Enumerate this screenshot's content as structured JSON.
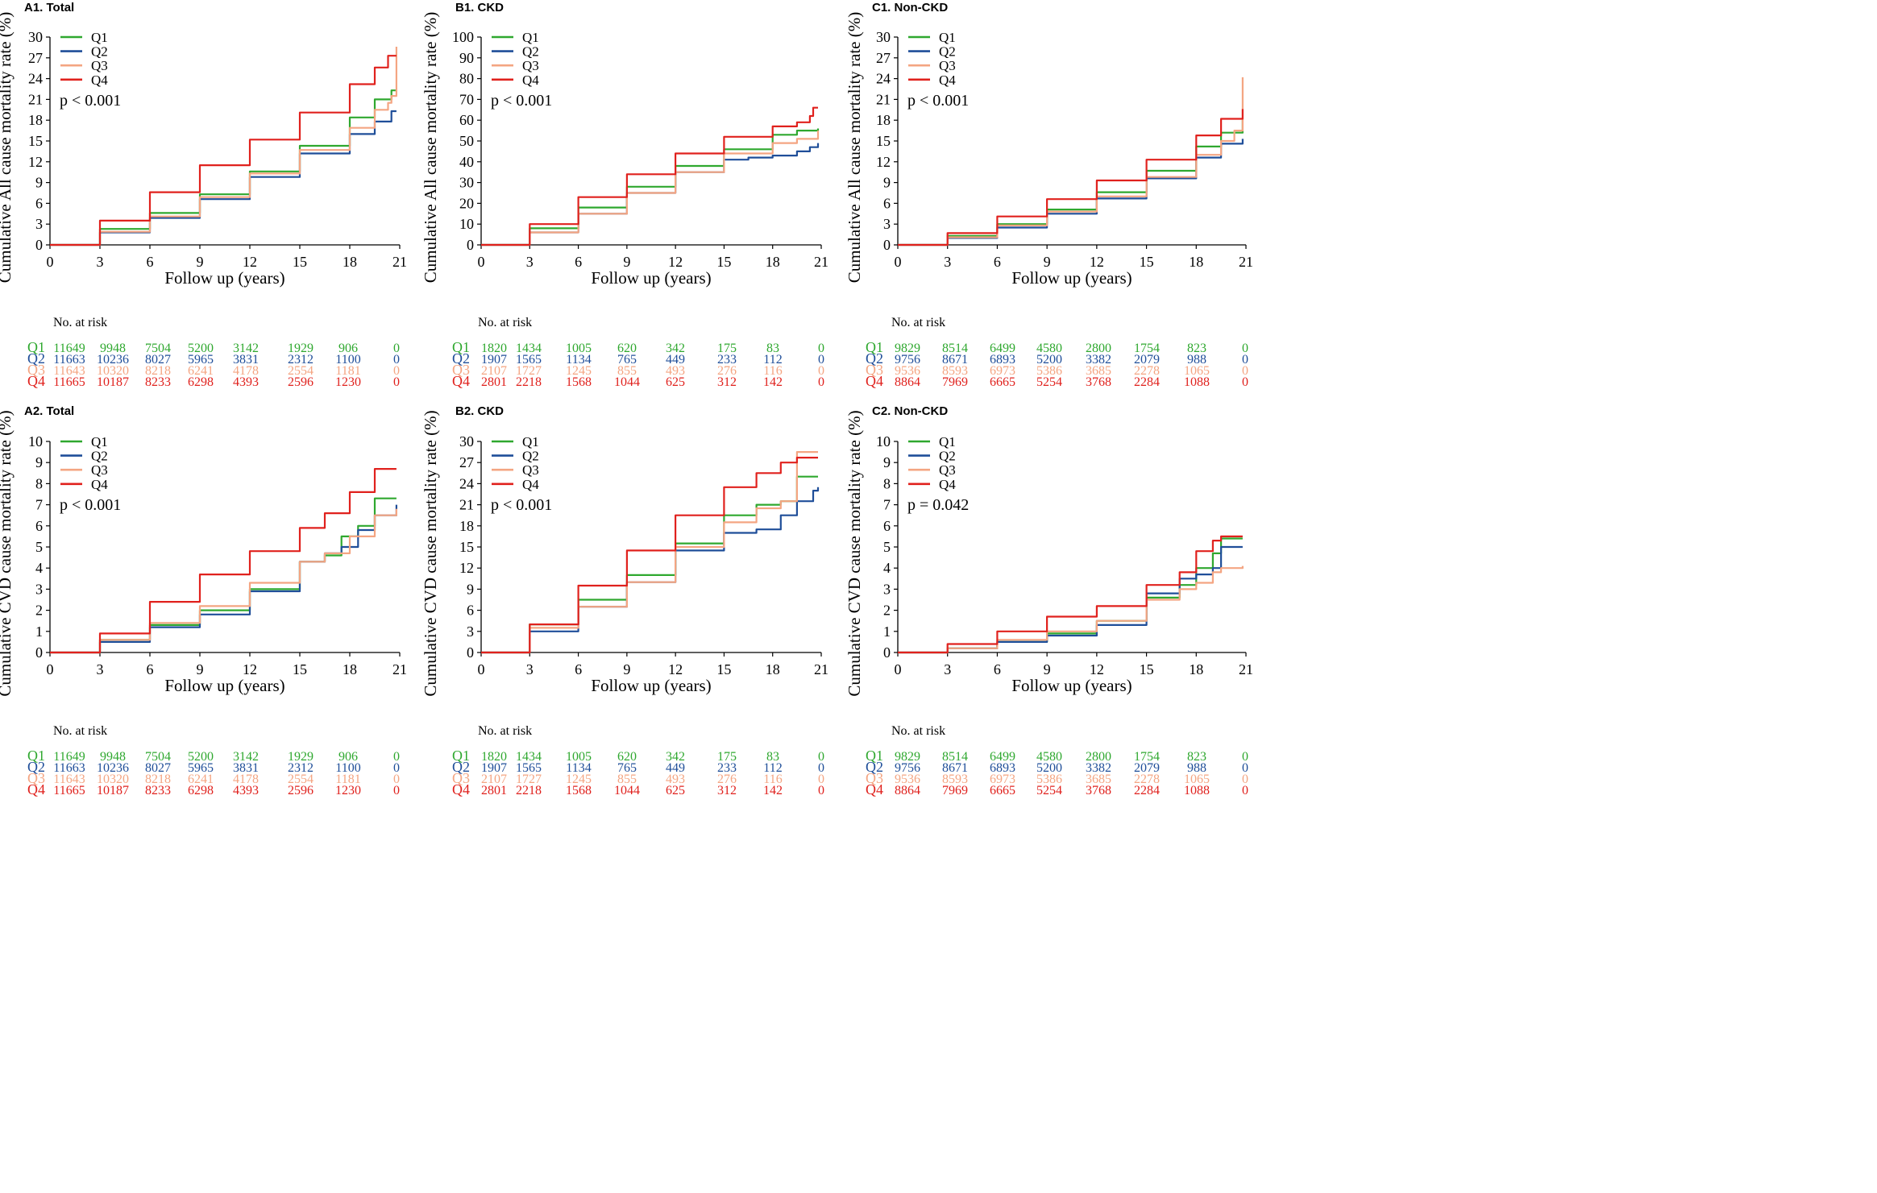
{
  "colors": {
    "Q1": "#2fa82f",
    "Q2": "#1f4e99",
    "Q3": "#f4a582",
    "Q4": "#e0211d",
    "axis": "#000000"
  },
  "legend_labels": [
    "Q1",
    "Q2",
    "Q3",
    "Q4"
  ],
  "risk_title": "No. at risk",
  "chart_data": [
    {
      "id": "A1",
      "type": "line",
      "title": "A1. Total",
      "ylabel": "Cumulative All cause mortality rate (%)",
      "xlabel": "Follow up (years)",
      "xticks": [
        "0",
        "3",
        "6",
        "9",
        "12",
        "15",
        "18",
        "21"
      ],
      "yticks": [
        "0",
        "3",
        "6",
        "9",
        "12",
        "15",
        "18",
        "21",
        "24",
        "27",
        "30"
      ],
      "xlim": [
        0,
        21
      ],
      "ylim": [
        0,
        30
      ],
      "pvalue": "p < 0.001",
      "series": [
        {
          "name": "Q1",
          "x": [
            0,
            3,
            6,
            9,
            12,
            15,
            18,
            19.5,
            20.5,
            20.8
          ],
          "y": [
            0,
            2.3,
            4.6,
            7.3,
            10.6,
            14.3,
            18.4,
            21.0,
            22.3,
            22.3
          ]
        },
        {
          "name": "Q2",
          "x": [
            0,
            3,
            6,
            9,
            12,
            15,
            18,
            19.5,
            20.5,
            20.8
          ],
          "y": [
            0,
            1.8,
            3.9,
            6.6,
            9.8,
            13.2,
            16.0,
            17.8,
            19.3,
            19.3
          ]
        },
        {
          "name": "Q3",
          "x": [
            0,
            3,
            6,
            9,
            12,
            15,
            18,
            19.5,
            20.3,
            20.5,
            20.7,
            20.8
          ],
          "y": [
            0,
            1.9,
            4.1,
            6.9,
            10.3,
            13.7,
            16.9,
            19.5,
            20.5,
            21.5,
            21.5,
            28.6
          ]
        },
        {
          "name": "Q4",
          "x": [
            0,
            3,
            6,
            9,
            12,
            15,
            18,
            19.5,
            20.3,
            20.5,
            20.8
          ],
          "y": [
            0,
            3.5,
            7.6,
            11.5,
            15.2,
            19.1,
            23.2,
            25.6,
            27.3,
            27.3,
            27.3
          ]
        }
      ],
      "at_risk": {
        "Q1": [
          "11649",
          "9948",
          "7504",
          "5200",
          "3142",
          "1929",
          "906",
          "0"
        ],
        "Q2": [
          "11663",
          "10236",
          "8027",
          "5965",
          "3831",
          "2312",
          "1100",
          "0"
        ],
        "Q3": [
          "11643",
          "10320",
          "8218",
          "6241",
          "4178",
          "2554",
          "1181",
          "0"
        ],
        "Q4": [
          "11665",
          "10187",
          "8233",
          "6298",
          "4393",
          "2596",
          "1230",
          "0"
        ]
      }
    },
    {
      "id": "B1",
      "type": "line",
      "title": "B1. CKD",
      "ylabel": "Cumulative All cause mortality rate (%)",
      "xlabel": "Follow up (years)",
      "xticks": [
        "0",
        "3",
        "6",
        "9",
        "12",
        "15",
        "18",
        "21"
      ],
      "yticks": [
        "0",
        "10",
        "20",
        "30",
        "40",
        "50",
        "60",
        "70",
        "80",
        "90",
        "100"
      ],
      "xlim": [
        0,
        21
      ],
      "ylim": [
        0,
        100
      ],
      "pvalue": "p < 0.001",
      "series": [
        {
          "name": "Q1",
          "x": [
            0,
            3,
            6,
            9,
            12,
            15,
            18,
            19.5,
            20.8
          ],
          "y": [
            0,
            8,
            18,
            28,
            38,
            46,
            53,
            55,
            56
          ]
        },
        {
          "name": "Q2",
          "x": [
            0,
            3,
            6,
            9,
            12,
            15,
            16.5,
            18,
            19.5,
            20.3,
            20.8
          ],
          "y": [
            0,
            6,
            15,
            25,
            35,
            41,
            42,
            43,
            45,
            47,
            49
          ]
        },
        {
          "name": "Q3",
          "x": [
            0,
            3,
            6,
            9,
            12,
            15,
            18,
            19.5,
            20.8
          ],
          "y": [
            0,
            6,
            15,
            25,
            35,
            44,
            49,
            51,
            55
          ]
        },
        {
          "name": "Q4",
          "x": [
            0,
            3,
            6,
            9,
            12,
            15,
            18,
            19.5,
            20.3,
            20.5,
            20.8
          ],
          "y": [
            0,
            10,
            23,
            34,
            44,
            52,
            57,
            59,
            62,
            66,
            66
          ]
        }
      ],
      "at_risk": {
        "Q1": [
          "1820",
          "1434",
          "1005",
          "620",
          "342",
          "175",
          "83",
          "0"
        ],
        "Q2": [
          "1907",
          "1565",
          "1134",
          "765",
          "449",
          "233",
          "112",
          "0"
        ],
        "Q3": [
          "2107",
          "1727",
          "1245",
          "855",
          "493",
          "276",
          "116",
          "0"
        ],
        "Q4": [
          "2801",
          "2218",
          "1568",
          "1044",
          "625",
          "312",
          "142",
          "0"
        ]
      }
    },
    {
      "id": "C1",
      "type": "line",
      "title": "C1. Non-CKD",
      "ylabel": "Cumulative All cause mortality rate (%)",
      "xlabel": "Follow up (years)",
      "xticks": [
        "0",
        "3",
        "6",
        "9",
        "12",
        "15",
        "18",
        "21"
      ],
      "yticks": [
        "0",
        "3",
        "6",
        "9",
        "12",
        "15",
        "18",
        "21",
        "24",
        "27",
        "30"
      ],
      "xlim": [
        0,
        21
      ],
      "ylim": [
        0,
        30
      ],
      "pvalue": "p < 0.001",
      "series": [
        {
          "name": "Q1",
          "x": [
            0,
            3,
            6,
            9,
            12,
            15,
            18,
            19.5,
            20.8
          ],
          "y": [
            0,
            1.3,
            3.0,
            5.1,
            7.6,
            10.7,
            14.2,
            16.2,
            18.0
          ]
        },
        {
          "name": "Q2",
          "x": [
            0,
            3,
            6,
            9,
            12,
            15,
            18,
            19.5,
            20.8
          ],
          "y": [
            0,
            1.0,
            2.5,
            4.5,
            6.7,
            9.6,
            12.6,
            14.6,
            15.3
          ]
        },
        {
          "name": "Q3",
          "x": [
            0,
            3,
            6,
            9,
            12,
            15,
            18,
            19.5,
            20.3,
            20.5,
            20.8
          ],
          "y": [
            0,
            1.1,
            2.8,
            4.8,
            7.0,
            9.8,
            13.0,
            15.0,
            16.5,
            16.5,
            24.2
          ]
        },
        {
          "name": "Q4",
          "x": [
            0,
            3,
            6,
            9,
            12,
            15,
            18,
            19.5,
            20.8
          ],
          "y": [
            0,
            1.7,
            4.1,
            6.6,
            9.3,
            12.3,
            15.8,
            18.2,
            19.6
          ]
        }
      ],
      "at_risk": {
        "Q1": [
          "9829",
          "8514",
          "6499",
          "4580",
          "2800",
          "1754",
          "823",
          "0"
        ],
        "Q2": [
          "9756",
          "8671",
          "6893",
          "5200",
          "3382",
          "2079",
          "988",
          "0"
        ],
        "Q3": [
          "9536",
          "8593",
          "6973",
          "5386",
          "3685",
          "2278",
          "1065",
          "0"
        ],
        "Q4": [
          "8864",
          "7969",
          "6665",
          "5254",
          "3768",
          "2284",
          "1088",
          "0"
        ]
      }
    },
    {
      "id": "A2",
      "type": "line",
      "title": "A2. Total",
      "ylabel": "Cumulative CVD cause mortality rate (%)",
      "xlabel": "Follow up (years)",
      "xticks": [
        "0",
        "3",
        "6",
        "9",
        "12",
        "15",
        "18",
        "21"
      ],
      "yticks": [
        "0",
        "1",
        "2",
        "3",
        "4",
        "5",
        "6",
        "7",
        "8",
        "9",
        "10"
      ],
      "xlim": [
        0,
        21
      ],
      "ylim": [
        0,
        10
      ],
      "pvalue": "p < 0.001",
      "series": [
        {
          "name": "Q1",
          "x": [
            0,
            3,
            6,
            9,
            12,
            15,
            16.5,
            17.5,
            18.5,
            19.5,
            20.8
          ],
          "y": [
            0,
            0.6,
            1.3,
            2.0,
            3.0,
            4.3,
            4.6,
            5.5,
            6.0,
            7.3,
            7.3
          ]
        },
        {
          "name": "Q2",
          "x": [
            0,
            3,
            6,
            9,
            12,
            15,
            16.5,
            17.5,
            18.5,
            19.5,
            20.8
          ],
          "y": [
            0,
            0.5,
            1.2,
            1.8,
            2.9,
            4.3,
            4.7,
            5.0,
            5.8,
            6.5,
            7.0
          ]
        },
        {
          "name": "Q3",
          "x": [
            0,
            3,
            6,
            9,
            12,
            15,
            16.5,
            18,
            19.5,
            20.8
          ],
          "y": [
            0,
            0.6,
            1.4,
            2.2,
            3.3,
            4.3,
            4.7,
            5.5,
            6.5,
            6.8
          ]
        },
        {
          "name": "Q4",
          "x": [
            0,
            3,
            6,
            9,
            12,
            15,
            16.5,
            18,
            19.5,
            20.8
          ],
          "y": [
            0,
            0.9,
            2.4,
            3.7,
            4.8,
            5.9,
            6.6,
            7.6,
            8.7,
            8.7
          ]
        }
      ],
      "at_risk": {
        "Q1": [
          "11649",
          "9948",
          "7504",
          "5200",
          "3142",
          "1929",
          "906",
          "0"
        ],
        "Q2": [
          "11663",
          "10236",
          "8027",
          "5965",
          "3831",
          "2312",
          "1100",
          "0"
        ],
        "Q3": [
          "11643",
          "10320",
          "8218",
          "6241",
          "4178",
          "2554",
          "1181",
          "0"
        ],
        "Q4": [
          "11665",
          "10187",
          "8233",
          "6298",
          "4393",
          "2596",
          "1230",
          "0"
        ]
      }
    },
    {
      "id": "B2",
      "type": "line",
      "title": "B2. CKD",
      "ylabel": "Cumulative CVD cause mortality rate (%)",
      "xlabel": "Follow up (years)",
      "xticks": [
        "0",
        "3",
        "6",
        "9",
        "12",
        "15",
        "18",
        "21"
      ],
      "yticks": [
        "0",
        "3",
        "6",
        "9",
        "12",
        "15",
        "18",
        "21",
        "24",
        "27",
        "30"
      ],
      "xlim": [
        0,
        21
      ],
      "ylim": [
        0,
        30
      ],
      "pvalue": "p < 0.001",
      "series": [
        {
          "name": "Q1",
          "x": [
            0,
            3,
            6,
            9,
            12,
            15,
            17,
            18.5,
            19.5,
            20.8
          ],
          "y": [
            0,
            4.0,
            7.5,
            11.0,
            15.5,
            19.5,
            21.0,
            21.5,
            25.0,
            25.0
          ]
        },
        {
          "name": "Q2",
          "x": [
            0,
            3,
            6,
            9,
            12,
            15,
            17,
            18.5,
            19.5,
            20.5,
            20.8
          ],
          "y": [
            0,
            3.0,
            6.5,
            10.0,
            14.5,
            17.0,
            17.5,
            19.5,
            21.5,
            23.0,
            23.5
          ]
        },
        {
          "name": "Q3",
          "x": [
            0,
            3,
            6,
            9,
            12,
            15,
            17,
            18.5,
            19.5,
            20.8
          ],
          "y": [
            0,
            3.5,
            6.5,
            10.0,
            15.0,
            18.5,
            20.5,
            21.5,
            28.5,
            28.5
          ]
        },
        {
          "name": "Q4",
          "x": [
            0,
            3,
            6,
            9,
            12,
            15,
            17,
            18.5,
            19.5,
            20.8
          ],
          "y": [
            0,
            4.0,
            9.5,
            14.5,
            19.5,
            23.5,
            25.5,
            27.0,
            27.7,
            27.7
          ]
        }
      ],
      "at_risk": {
        "Q1": [
          "1820",
          "1434",
          "1005",
          "620",
          "342",
          "175",
          "83",
          "0"
        ],
        "Q2": [
          "1907",
          "1565",
          "1134",
          "765",
          "449",
          "233",
          "112",
          "0"
        ],
        "Q3": [
          "2107",
          "1727",
          "1245",
          "855",
          "493",
          "276",
          "116",
          "0"
        ],
        "Q4": [
          "2801",
          "2218",
          "1568",
          "1044",
          "625",
          "312",
          "142",
          "0"
        ]
      }
    },
    {
      "id": "C2",
      "type": "line",
      "title": "C2. Non-CKD",
      "ylabel": "Cumulative CVD cause mortality rate (%)",
      "xlabel": "Follow up (years)",
      "xticks": [
        "0",
        "3",
        "6",
        "9",
        "12",
        "15",
        "18",
        "21"
      ],
      "yticks": [
        "0",
        "1",
        "2",
        "3",
        "4",
        "5",
        "6",
        "7",
        "8",
        "9",
        "10"
      ],
      "xlim": [
        0,
        21
      ],
      "ylim": [
        0,
        10
      ],
      "pvalue": "p = 0.042",
      "series": [
        {
          "name": "Q1",
          "x": [
            0,
            3,
            6,
            9,
            12,
            15,
            17,
            18,
            19,
            19.5,
            20.8
          ],
          "y": [
            0,
            0.2,
            0.5,
            0.9,
            1.5,
            2.6,
            3.2,
            4.0,
            4.7,
            5.4,
            5.4
          ]
        },
        {
          "name": "Q2",
          "x": [
            0,
            3,
            6,
            9,
            12,
            15,
            17,
            18,
            19,
            19.5,
            20.8
          ],
          "y": [
            0,
            0.2,
            0.5,
            0.8,
            1.3,
            2.8,
            3.5,
            3.7,
            4.0,
            5.0,
            5.0
          ]
        },
        {
          "name": "Q3",
          "x": [
            0,
            3,
            6,
            9,
            12,
            15,
            17,
            18,
            19,
            19.5,
            20.8
          ],
          "y": [
            0,
            0.2,
            0.6,
            1.0,
            1.5,
            2.5,
            3.0,
            3.3,
            3.8,
            4.0,
            4.1
          ]
        },
        {
          "name": "Q4",
          "x": [
            0,
            3,
            6,
            9,
            12,
            15,
            17,
            18,
            19,
            19.5,
            20.8
          ],
          "y": [
            0,
            0.4,
            1.0,
            1.7,
            2.2,
            3.2,
            3.8,
            4.8,
            5.3,
            5.5,
            5.5
          ]
        }
      ],
      "at_risk": {
        "Q1": [
          "9829",
          "8514",
          "6499",
          "4580",
          "2800",
          "1754",
          "823",
          "0"
        ],
        "Q2": [
          "9756",
          "8671",
          "6893",
          "5200",
          "3382",
          "2079",
          "988",
          "0"
        ],
        "Q3": [
          "9536",
          "8593",
          "6973",
          "5386",
          "3685",
          "2278",
          "1065",
          "0"
        ],
        "Q4": [
          "8864",
          "7969",
          "6665",
          "5254",
          "3768",
          "2284",
          "1088",
          "0"
        ]
      }
    }
  ]
}
